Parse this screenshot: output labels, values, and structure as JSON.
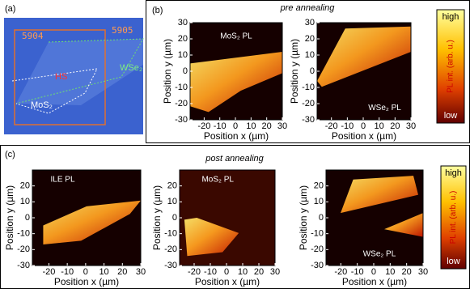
{
  "panels": [
    {
      "label": "(a)",
      "annotations": [
        "5904",
        "5905",
        "HS",
        "WSe₂",
        "MoS₂"
      ]
    },
    {
      "label": "(b)",
      "title": "pre annealing",
      "maps": [
        {
          "label": "MoS₂ PL",
          "xlabel": "Position x (µm)",
          "ylabel": "Position y (µm)",
          "xlim": [
            -29,
            30
          ],
          "ylim": [
            -30,
            30
          ],
          "xticks": [
            -20,
            -10,
            0,
            10,
            20,
            30
          ],
          "yticks": [
            30,
            20,
            10,
            0,
            -10,
            -20,
            -30
          ]
        },
        {
          "label": "WSe₂ PL",
          "xlabel": "Position x (µm)",
          "ylabel": "Position y (µm)",
          "xlim": [
            -29,
            30
          ],
          "ylim": [
            -30,
            30
          ],
          "xticks": [
            -20,
            -10,
            0,
            10,
            20,
            30
          ],
          "yticks": [
            30,
            20,
            10,
            0,
            -10,
            -20,
            -30
          ]
        }
      ],
      "colorbar": {
        "high": "high",
        "low": "low",
        "label": "PL int. (arb. u.)"
      }
    },
    {
      "label": "(c)",
      "title": "post annealing",
      "maps": [
        {
          "label": "ILE PL",
          "xlabel": "Position x (µm)",
          "ylabel": "Position y (µm)",
          "xlim": [
            -29,
            30
          ],
          "ylim": [
            -30,
            30
          ],
          "xticks": [
            -20,
            -10,
            0,
            10,
            20,
            30
          ],
          "yticks": [
            20,
            10,
            0,
            -10,
            -20,
            -30
          ]
        },
        {
          "label": "MoS₂ PL",
          "xlabel": "Position x (µm)",
          "ylabel": "Position y (µm)",
          "xlim": [
            -29,
            30
          ],
          "ylim": [
            -30,
            30
          ],
          "xticks": [
            -20,
            -10,
            0,
            10,
            20,
            30
          ],
          "yticks": [
            20,
            10,
            0,
            -10,
            -20,
            -30
          ]
        },
        {
          "label": "WSe₂ PL",
          "xlabel": "Position x (µm)",
          "ylabel": "Position y (µm)",
          "xlim": [
            -29,
            30
          ],
          "ylim": [
            -30,
            30
          ],
          "xticks": [
            -20,
            -10,
            0,
            10,
            20,
            30
          ],
          "yticks": [
            20,
            10,
            0,
            -10,
            -20,
            -30
          ]
        }
      ],
      "colorbar": {
        "high": "high",
        "low": "low",
        "label": "PL int. (arb. u.)"
      }
    }
  ]
}
